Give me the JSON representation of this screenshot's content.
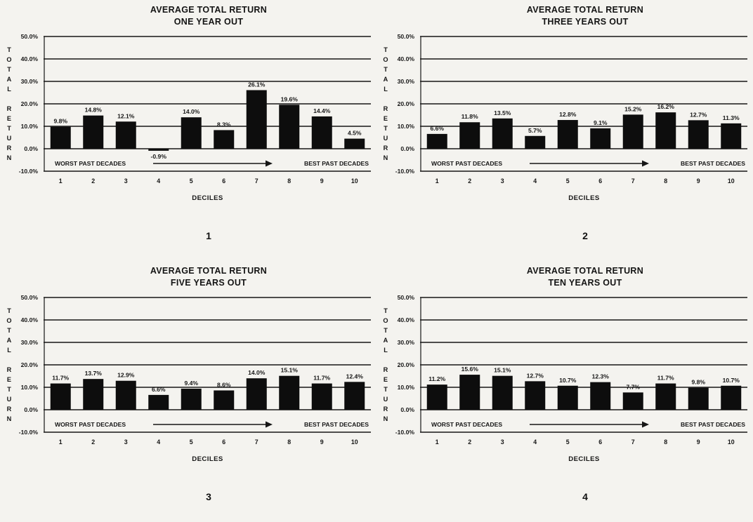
{
  "page": {
    "background": "#f4f3ef",
    "ink_color": "#161616",
    "bar_color": "#0d0d0d"
  },
  "chart_data": [
    {
      "type": "bar",
      "title": "AVERAGE TOTAL RETURN",
      "subtitle": "ONE YEAR OUT",
      "figure_number": "1",
      "ylabel": "TOTAL RETURN",
      "xlabel": "DECILES",
      "annotation_left": "WORST PAST DECADES",
      "annotation_right": "BEST PAST DECADES",
      "categories": [
        "1",
        "2",
        "3",
        "4",
        "5",
        "6",
        "7",
        "8",
        "9",
        "10"
      ],
      "values": [
        9.8,
        14.8,
        12.1,
        -0.9,
        14.0,
        8.3,
        26.1,
        19.6,
        14.4,
        4.5
      ],
      "bar_labels": [
        "9.8%",
        "14.8%",
        "12.1%",
        "-0.9%",
        "14.0%",
        "8.3%",
        "26.1%",
        "19.6%",
        "14.4%",
        "4.5%"
      ],
      "ylim": [
        -10,
        50
      ],
      "yticks": [
        50,
        40,
        30,
        20,
        10,
        0,
        -10
      ],
      "ytick_labels": [
        "50.0%",
        "40.0%",
        "30.0%",
        "20.0%",
        "10.0%",
        "0.0%",
        "-10.0%"
      ],
      "grid": true,
      "legend": "none"
    },
    {
      "type": "bar",
      "title": "AVERAGE TOTAL RETURN",
      "subtitle": "THREE YEARS OUT",
      "figure_number": "2",
      "ylabel": "TOTAL RETURN",
      "xlabel": "DECILES",
      "annotation_left": "WORST PAST DECADES",
      "annotation_right": "BEST PAST DECADES",
      "categories": [
        "1",
        "2",
        "3",
        "4",
        "5",
        "6",
        "7",
        "8",
        "9",
        "10"
      ],
      "values": [
        6.6,
        11.8,
        13.5,
        5.7,
        12.8,
        9.1,
        15.2,
        16.2,
        12.7,
        11.3
      ],
      "bar_labels": [
        "6.6%",
        "11.8%",
        "13.5%",
        "5.7%",
        "12.8%",
        "9.1%",
        "15.2%",
        "16.2%",
        "12.7%",
        "11.3%"
      ],
      "ylim": [
        -10,
        50
      ],
      "yticks": [
        50,
        40,
        30,
        20,
        10,
        0,
        -10
      ],
      "ytick_labels": [
        "50.0%",
        "40.0%",
        "30.0%",
        "20.0%",
        "10.0%",
        "0.0%",
        "-10.0%"
      ],
      "grid": true,
      "legend": "none"
    },
    {
      "type": "bar",
      "title": "AVERAGE TOTAL RETURN",
      "subtitle": "FIVE YEARS OUT",
      "figure_number": "3",
      "ylabel": "TOTAL RETURN",
      "xlabel": "DECILES",
      "annotation_left": "WORST PAST DECADES",
      "annotation_right": "BEST PAST DECADES",
      "categories": [
        "1",
        "2",
        "3",
        "4",
        "5",
        "6",
        "7",
        "8",
        "9",
        "10"
      ],
      "values": [
        11.7,
        13.7,
        12.9,
        6.6,
        9.4,
        8.6,
        14.0,
        15.1,
        11.7,
        12.4
      ],
      "bar_labels": [
        "11.7%",
        "13.7%",
        "12.9%",
        "6.6%",
        "9.4%",
        "8.6%",
        "14.0%",
        "15.1%",
        "11.7%",
        "12.4%"
      ],
      "ylim": [
        -10,
        50
      ],
      "yticks": [
        50,
        40,
        30,
        20,
        10,
        0,
        -10
      ],
      "ytick_labels": [
        "50.0%",
        "40.0%",
        "30.0%",
        "20.0%",
        "10.0%",
        "0.0%",
        "-10.0%"
      ],
      "grid": true,
      "legend": "none"
    },
    {
      "type": "bar",
      "title": "AVERAGE TOTAL RETURN",
      "subtitle": "TEN YEARS OUT",
      "figure_number": "4",
      "ylabel": "TOTAL RETURN",
      "xlabel": "DECILES",
      "annotation_left": "WORST PAST DECADES",
      "annotation_right": "BEST PAST DECADES",
      "categories": [
        "1",
        "2",
        "3",
        "4",
        "5",
        "6",
        "7",
        "8",
        "9",
        "10"
      ],
      "values": [
        11.2,
        15.6,
        15.1,
        12.7,
        10.7,
        12.3,
        7.7,
        11.7,
        9.8,
        10.7
      ],
      "bar_labels": [
        "11.2%",
        "15.6%",
        "15.1%",
        "12.7%",
        "10.7%",
        "12.3%",
        "7.7%",
        "11.7%",
        "9.8%",
        "10.7%"
      ],
      "ylim": [
        -10,
        50
      ],
      "yticks": [
        50,
        40,
        30,
        20,
        10,
        0,
        -10
      ],
      "ytick_labels": [
        "50.0%",
        "40.0%",
        "30.0%",
        "20.0%",
        "10.0%",
        "0.0%",
        "-10.0%"
      ],
      "grid": true,
      "legend": "none"
    }
  ]
}
